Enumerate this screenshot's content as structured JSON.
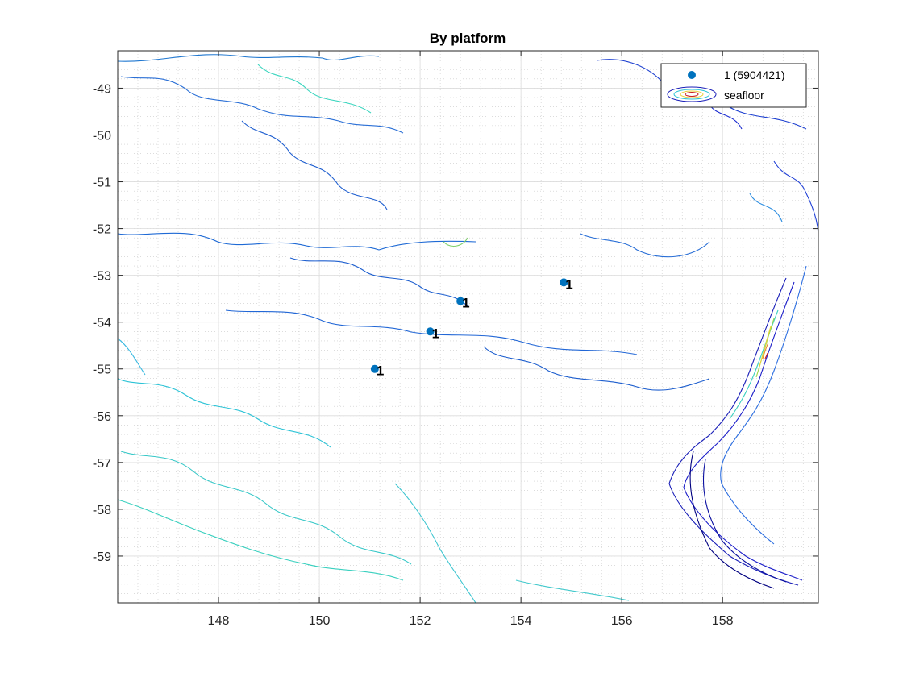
{
  "chart_data": {
    "type": "scatter",
    "title": "By platform",
    "xlabel": "",
    "ylabel": "",
    "xlim": [
      146.0,
      159.9
    ],
    "ylim": [
      -60.0,
      -48.2
    ],
    "xticks": [
      148,
      150,
      152,
      154,
      156,
      158
    ],
    "yticks": [
      -49,
      -50,
      -51,
      -52,
      -53,
      -54,
      -55,
      -56,
      -57,
      -58,
      -59
    ],
    "xtick_labels": [
      "148",
      "150",
      "152",
      "154",
      "156",
      "158"
    ],
    "ytick_labels": [
      "-49",
      "-50",
      "-51",
      "-52",
      "-53",
      "-54",
      "-55",
      "-56",
      "-57",
      "-58",
      "-59"
    ],
    "grid": true,
    "minor_grid": true,
    "legend_position": "top-right",
    "series": [
      {
        "name": "1 (5904421)",
        "color": "#0072BD",
        "marker": "circle",
        "point_label": "1",
        "points": [
          {
            "x": 151.1,
            "y": -55.0
          },
          {
            "x": 152.2,
            "y": -54.2
          },
          {
            "x": 152.8,
            "y": -53.55
          },
          {
            "x": 154.85,
            "y": -53.15
          }
        ]
      }
    ],
    "contour_layer": {
      "name": "seafloor",
      "colormap": "jet"
    },
    "legend": [
      {
        "label": "1 (5904421)",
        "symbol": "marker"
      },
      {
        "label": "seafloor",
        "symbol": "contour"
      }
    ]
  }
}
